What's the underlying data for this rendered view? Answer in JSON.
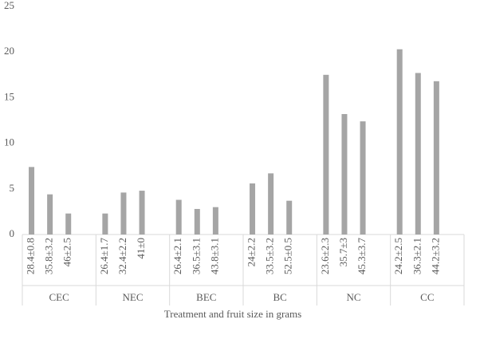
{
  "chart_data": {
    "type": "bar",
    "x_label": "Treatment and  fruit size in grams",
    "color": "#a5a5a5",
    "ylim": [
      0,
      25
    ],
    "yticks": [
      0,
      5,
      10,
      15,
      20,
      25
    ],
    "groups": [
      {
        "name": "CEC",
        "categories": [
          "28.4±0.8",
          "35.8±3.2",
          "46±2.5"
        ],
        "values": [
          7.4,
          4.4,
          2.3
        ]
      },
      {
        "name": "NEC",
        "categories": [
          "26.4±1.7",
          "32.4±2.2",
          "41±0"
        ],
        "values": [
          2.3,
          4.6,
          4.8
        ]
      },
      {
        "name": "BEC",
        "categories": [
          "26.4±2.1",
          "36.5±3.1",
          "43.8±3.1"
        ],
        "values": [
          3.8,
          2.8,
          3.0
        ]
      },
      {
        "name": "BC",
        "categories": [
          "24±2.2",
          "33.5±3.2",
          "52.5±0.5"
        ],
        "values": [
          5.6,
          6.7,
          3.7
        ]
      },
      {
        "name": "NC",
        "categories": [
          "23.6±2.3",
          "35.7±3",
          "45.3±3.7"
        ],
        "values": [
          17.5,
          13.2,
          12.4
        ]
      },
      {
        "name": "CC",
        "categories": [
          "24.2±2.5",
          "36.3±2.1",
          "44.2±3.2"
        ],
        "values": [
          20.3,
          17.7,
          16.8
        ]
      }
    ]
  }
}
